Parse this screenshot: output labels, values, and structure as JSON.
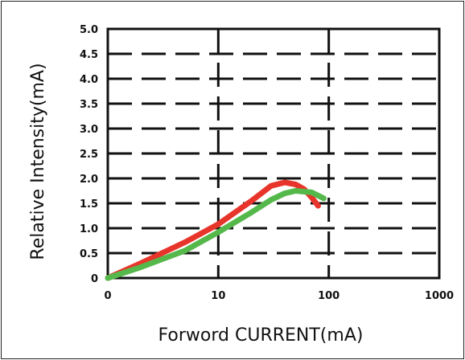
{
  "chart_data": {
    "type": "line",
    "title": "",
    "xlabel": "Forword  CURRENT(mA)",
    "ylabel": "Relative  Intensity(mA)",
    "xscale": "log",
    "x_ticks": [
      "0",
      "10",
      "100",
      "1000"
    ],
    "y_ticks": [
      "0",
      "0.5",
      "1.0",
      "1.5",
      "2.0",
      "2.5",
      "3.0",
      "3.5",
      "4.0",
      "4.5",
      "5.0"
    ],
    "xlim": [
      1,
      1000
    ],
    "ylim": [
      0,
      5.0
    ],
    "grid": "dashed",
    "legend": "none",
    "series": [
      {
        "color": "#e8352b",
        "points": [
          {
            "x": 1,
            "y": 0.0
          },
          {
            "x": 2,
            "y": 0.3
          },
          {
            "x": 5,
            "y": 0.72
          },
          {
            "x": 10,
            "y": 1.08
          },
          {
            "x": 20,
            "y": 1.55
          },
          {
            "x": 30,
            "y": 1.85
          },
          {
            "x": 40,
            "y": 1.92
          },
          {
            "x": 50,
            "y": 1.88
          },
          {
            "x": 60,
            "y": 1.78
          },
          {
            "x": 70,
            "y": 1.62
          },
          {
            "x": 80,
            "y": 1.45
          }
        ]
      },
      {
        "color": "#55b84a",
        "points": [
          {
            "x": 1,
            "y": 0.0
          },
          {
            "x": 2,
            "y": 0.22
          },
          {
            "x": 5,
            "y": 0.55
          },
          {
            "x": 10,
            "y": 0.92
          },
          {
            "x": 20,
            "y": 1.32
          },
          {
            "x": 30,
            "y": 1.57
          },
          {
            "x": 40,
            "y": 1.7
          },
          {
            "x": 50,
            "y": 1.75
          },
          {
            "x": 70,
            "y": 1.72
          },
          {
            "x": 90,
            "y": 1.6
          }
        ]
      }
    ]
  }
}
